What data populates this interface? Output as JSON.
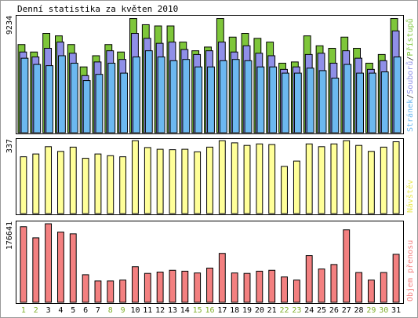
{
  "title": "Denní statistika za květen 2010",
  "colors": {
    "background": "#ffffff",
    "frame": "#000000",
    "grid": "#cccccc",
    "accesses": "#7ec63a",
    "files": "#8f8fe8",
    "pages": "#6cb8f0",
    "visits": "#ffff99",
    "traffic": "#f38080",
    "weekday_label": "#000000",
    "weekend_label": "#7fae2a"
  },
  "chart_data": [
    {
      "type": "bar",
      "name": "hits",
      "ymax_label": "9234",
      "ylim": [
        0,
        9234
      ],
      "legend": [
        {
          "label": "Stránek",
          "color": "#6cb8f0"
        },
        {
          "label": "/",
          "color": "#333333"
        },
        {
          "label": "Souborů",
          "color": "#8f8fe8"
        },
        {
          "label": "/",
          "color": "#333333"
        },
        {
          "label": "Přístupů",
          "color": "#7ec63a"
        }
      ],
      "categories": [
        "1",
        "2",
        "3",
        "4",
        "5",
        "6",
        "7",
        "8",
        "9",
        "10",
        "11",
        "12",
        "13",
        "14",
        "15",
        "16",
        "17",
        "18",
        "19",
        "20",
        "21",
        "22",
        "23",
        "24",
        "25",
        "26",
        "27",
        "28",
        "29",
        "30",
        "31"
      ],
      "series": [
        {
          "name": "Přístupů",
          "values": [
            7100,
            6500,
            8000,
            7800,
            7100,
            5300,
            6200,
            7100,
            6500,
            9200,
            8700,
            8600,
            8600,
            7300,
            6600,
            6900,
            9200,
            7700,
            8000,
            7600,
            7300,
            5600,
            5700,
            7800,
            7000,
            6800,
            7700,
            6800,
            5600,
            6300,
            9200
          ]
        },
        {
          "name": "Souborů",
          "values": [
            6500,
            6100,
            6800,
            7300,
            6400,
            4600,
            5700,
            6600,
            5900,
            8000,
            7600,
            7200,
            7300,
            6700,
            6300,
            6600,
            7300,
            6500,
            7000,
            6400,
            6200,
            5100,
            5300,
            6300,
            6400,
            5600,
            6600,
            6000,
            5100,
            5800,
            8200
          ]
        },
        {
          "name": "Stránek",
          "values": [
            6000,
            5500,
            5400,
            6200,
            5600,
            4200,
            4700,
            5600,
            4800,
            6100,
            6600,
            6100,
            5800,
            5900,
            5300,
            5300,
            5800,
            5900,
            5800,
            5300,
            5300,
            4800,
            4800,
            5200,
            5000,
            4400,
            5500,
            4800,
            4800,
            4900,
            6100
          ]
        }
      ]
    },
    {
      "type": "bar",
      "name": "visits",
      "ymax_label": "337",
      "ylim": [
        0,
        337
      ],
      "legend": [
        {
          "label": "Návštěv",
          "color": "#e8e850"
        }
      ],
      "categories": [
        "1",
        "2",
        "3",
        "4",
        "5",
        "6",
        "7",
        "8",
        "9",
        "10",
        "11",
        "12",
        "13",
        "14",
        "15",
        "16",
        "17",
        "18",
        "19",
        "20",
        "21",
        "22",
        "23",
        "24",
        "25",
        "26",
        "27",
        "28",
        "29",
        "30",
        "31"
      ],
      "series": [
        {
          "name": "Návštěv",
          "values": [
            265,
            278,
            312,
            290,
            310,
            258,
            278,
            270,
            265,
            340,
            308,
            300,
            298,
            300,
            288,
            310,
            340,
            330,
            318,
            325,
            322,
            220,
            245,
            325,
            312,
            325,
            340,
            318,
            290,
            310,
            335
          ]
        }
      ]
    },
    {
      "type": "bar",
      "name": "traffic",
      "ymax_label": "176641",
      "ylim": [
        0,
        176641
      ],
      "legend": [
        {
          "label": "Objem přenosu",
          "color": "#f38080"
        }
      ],
      "categories": [
        "1",
        "2",
        "3",
        "4",
        "5",
        "6",
        "7",
        "8",
        "9",
        "10",
        "11",
        "12",
        "13",
        "14",
        "15",
        "16",
        "17",
        "18",
        "19",
        "20",
        "21",
        "22",
        "23",
        "24",
        "25",
        "26",
        "27",
        "28",
        "29",
        "30",
        "31"
      ],
      "series": [
        {
          "name": "Objem přenosu",
          "values": [
            170000,
            145000,
            176641,
            158000,
            154000,
            62000,
            48000,
            48000,
            50000,
            80000,
            65000,
            68000,
            72000,
            70000,
            66000,
            77000,
            110000,
            66000,
            65000,
            70000,
            72000,
            57000,
            50000,
            105000,
            75000,
            85000,
            163000,
            67000,
            50000,
            67000,
            108000
          ]
        }
      ]
    }
  ],
  "weekend_days": [
    "1",
    "2",
    "8",
    "9",
    "15",
    "16",
    "22",
    "23",
    "29",
    "30"
  ]
}
